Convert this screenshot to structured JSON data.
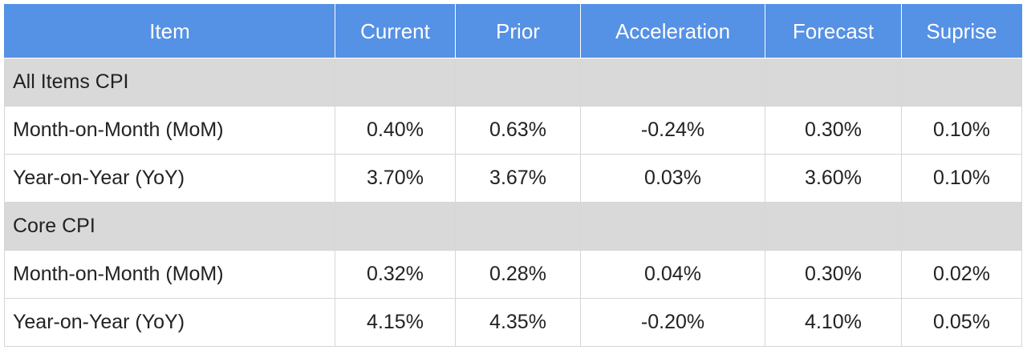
{
  "table": {
    "headers": [
      "Item",
      "Current",
      "Prior",
      "Acceleration",
      "Forecast",
      "Suprise"
    ],
    "rows": [
      {
        "type": "section",
        "label": "All Items CPI"
      },
      {
        "type": "data",
        "label": "Month-on-Month (MoM)",
        "values": [
          "0.40%",
          "0.63%",
          "-0.24%",
          "0.30%",
          "0.10%"
        ]
      },
      {
        "type": "data",
        "label": "Year-on-Year (YoY)",
        "values": [
          "3.70%",
          "3.67%",
          "0.03%",
          "3.60%",
          "0.10%"
        ]
      },
      {
        "type": "section",
        "label": "Core CPI"
      },
      {
        "type": "data",
        "label": "Month-on-Month (MoM)",
        "values": [
          "0.32%",
          "0.28%",
          "0.04%",
          "0.30%",
          "0.02%"
        ]
      },
      {
        "type": "data",
        "label": "Year-on-Year (YoY)",
        "values": [
          "4.15%",
          "4.35%",
          "-0.20%",
          "4.10%",
          "0.05%"
        ]
      }
    ]
  },
  "colors": {
    "header_bg": "#5591e5",
    "header_text": "#ffffff",
    "section_bg": "#d9d9d9",
    "border": "#d6d6d6"
  }
}
